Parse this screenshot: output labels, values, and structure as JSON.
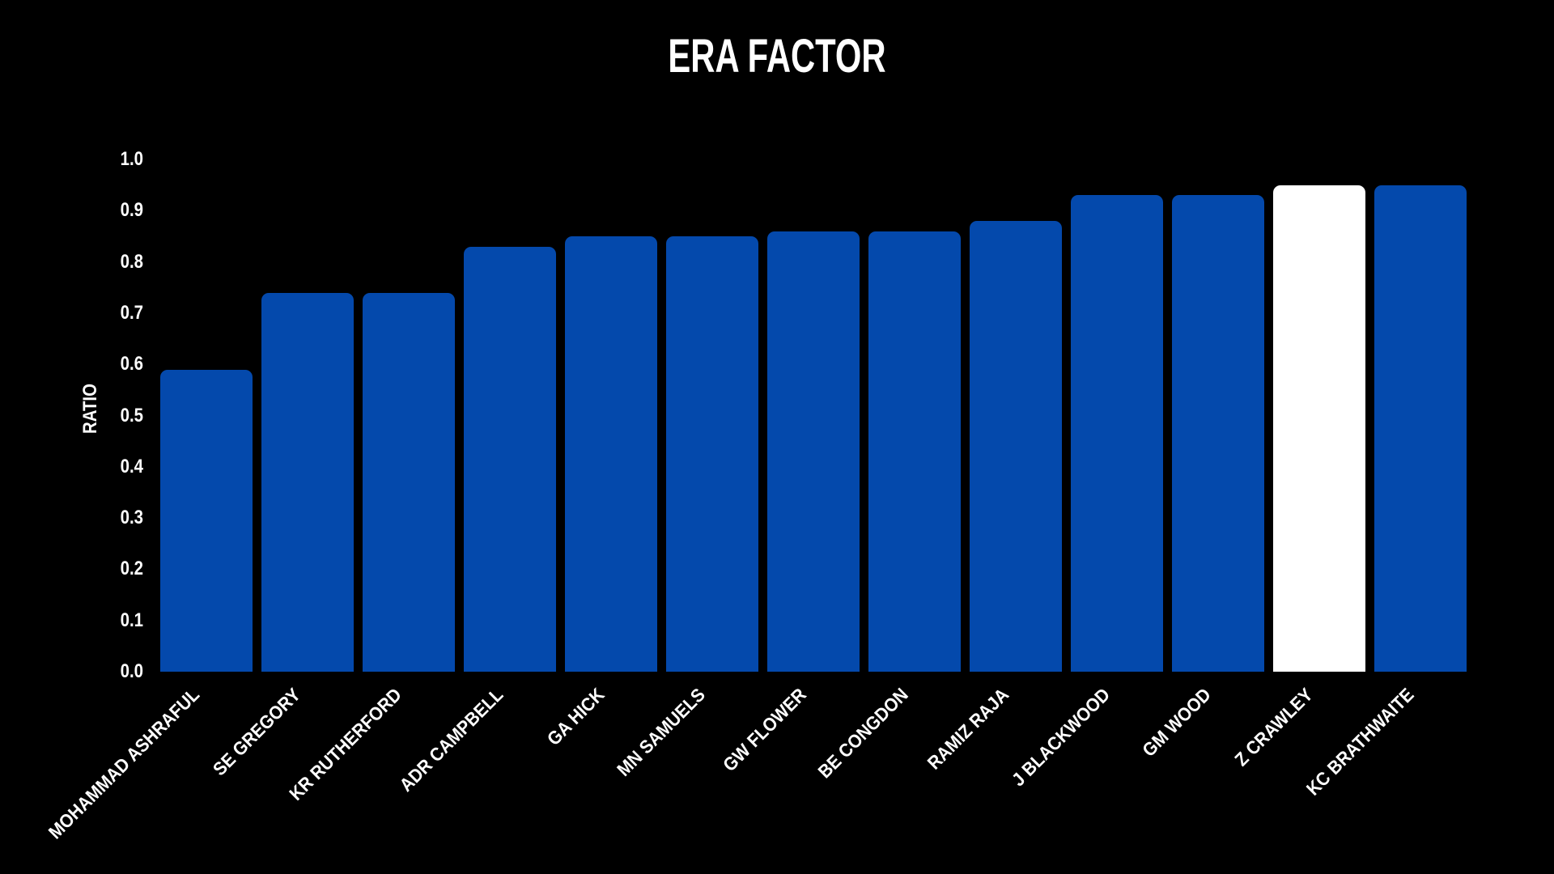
{
  "page": {
    "background_color": "#000000"
  },
  "chart_data": {
    "type": "bar",
    "title": "ERA FACTOR",
    "xlabel": "",
    "ylabel": "RATIO",
    "categories": [
      "MOHAMMAD ASHRAFUL",
      "SE GREGORY",
      "KR RUTHERFORD",
      "ADR CAMPBELL",
      "GA HICK",
      "MN SAMUELS",
      "GW FLOWER",
      "BE CONGDON",
      "RAMIZ RAJA",
      "J BLACKWOOD",
      "GM WOOD",
      "Z CRAWLEY",
      "KC BRATHWAITE"
    ],
    "values": [
      0.59,
      0.74,
      0.74,
      0.83,
      0.85,
      0.85,
      0.86,
      0.86,
      0.88,
      0.93,
      0.93,
      0.95,
      0.95
    ],
    "ylim": [
      0.0,
      1.0
    ],
    "yticks": [
      "0.0",
      "0.1",
      "0.2",
      "0.3",
      "0.4",
      "0.5",
      "0.6",
      "0.7",
      "0.8",
      "0.9",
      "1.0"
    ],
    "ytick_values": [
      0.0,
      0.1,
      0.2,
      0.3,
      0.4,
      0.5,
      0.6,
      0.7,
      0.8,
      0.9,
      1.0
    ],
    "xtick_rotation_deg": 45,
    "grid": false,
    "legend": null,
    "bar_color": "#0449AC",
    "highlight_color": "#FFFFFF",
    "highlight_index": 11,
    "text_color": "#FFFFFF",
    "background_color": "#000000"
  }
}
